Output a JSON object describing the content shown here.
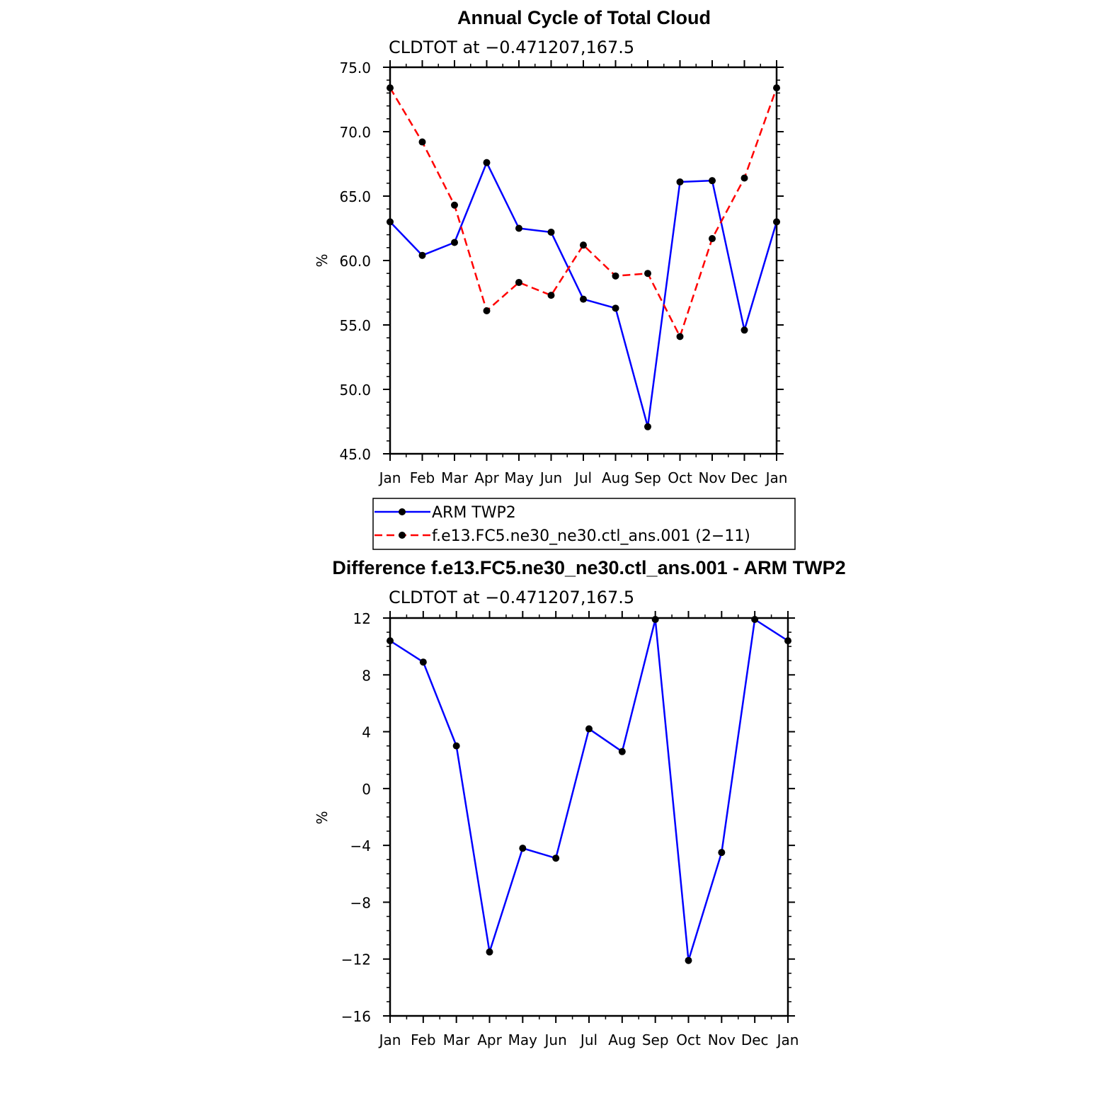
{
  "chart_data": [
    {
      "type": "line",
      "title": "Annual Cycle of Total Cloud",
      "subtitle": "CLDTOT at −0.471207,167.5",
      "xlabel": "",
      "ylabel": "%",
      "categories": [
        "Jan",
        "Feb",
        "Mar",
        "Apr",
        "May",
        "Jun",
        "Jul",
        "Aug",
        "Sep",
        "Oct",
        "Nov",
        "Dec",
        "Jan"
      ],
      "ylim": [
        45,
        75
      ],
      "yticks": [
        "75.0",
        "70.0",
        "65.0",
        "60.0",
        "55.0",
        "50.0",
        "45.0"
      ],
      "series": [
        {
          "name": "ARM TWP2",
          "color": "#0000ff",
          "dash": "solid",
          "values": [
            63.0,
            60.4,
            61.4,
            67.6,
            62.5,
            62.2,
            57.0,
            56.3,
            47.1,
            66.1,
            66.2,
            54.6,
            63.0
          ]
        },
        {
          "name": "f.e13.FC5.ne30_ne30.ctl_ans.001 (2−11)",
          "color": "#ff0000",
          "dash": "dashed",
          "values": [
            73.4,
            69.2,
            64.3,
            56.1,
            58.3,
            57.3,
            61.2,
            58.8,
            59.0,
            54.1,
            61.7,
            66.4,
            73.4
          ]
        }
      ],
      "legend_position": "below"
    },
    {
      "type": "line",
      "title": "Difference f.e13.FC5.ne30_ne30.ctl_ans.001 - ARM TWP2",
      "subtitle": "CLDTOT at −0.471207,167.5",
      "xlabel": "",
      "ylabel": "%",
      "categories": [
        "Jan",
        "Feb",
        "Mar",
        "Apr",
        "May",
        "Jun",
        "Jul",
        "Aug",
        "Sep",
        "Oct",
        "Nov",
        "Dec",
        "Jan"
      ],
      "ylim": [
        -16,
        12
      ],
      "yticks": [
        "12",
        "8",
        "4",
        "0",
        "−4",
        "−8",
        "−12",
        "−16"
      ],
      "series": [
        {
          "name": "",
          "color": "#0000ff",
          "dash": "solid",
          "values": [
            10.4,
            8.9,
            3.0,
            -11.5,
            -4.2,
            -4.9,
            4.2,
            2.6,
            11.9,
            -12.1,
            -4.5,
            11.9,
            10.4
          ]
        }
      ]
    }
  ]
}
